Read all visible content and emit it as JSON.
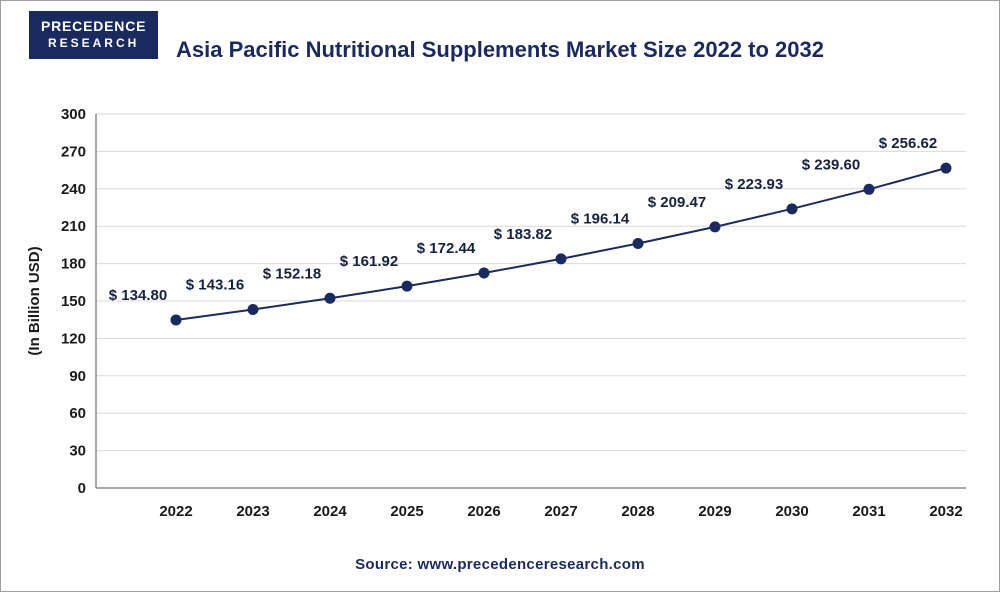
{
  "logo": {
    "line1": "PRECEDENCE",
    "line2": "RESEARCH"
  },
  "title": "Asia Pacific Nutritional Supplements Market Size 2022 to 2032",
  "source": "Source: www.precedenceresearch.com",
  "chart_data": {
    "type": "line",
    "title": "Asia Pacific Nutritional Supplements Market Size 2022 to 2032",
    "categories": [
      "2022",
      "2023",
      "2024",
      "2025",
      "2026",
      "2027",
      "2028",
      "2029",
      "2030",
      "2031",
      "2032"
    ],
    "values": [
      134.8,
      143.16,
      152.18,
      161.92,
      172.44,
      183.82,
      196.14,
      209.47,
      223.93,
      239.6,
      256.62
    ],
    "value_labels": [
      "$ 134.80",
      "$ 143.16",
      "$ 152.18",
      "$ 161.92",
      "$ 172.44",
      "$ 183.82",
      "$ 196.14",
      "$ 209.47",
      "$ 223.93",
      "$ 239.60",
      "$ 256.62"
    ],
    "xlabel": "",
    "ylabel": "(In Billion USD)",
    "ylim": [
      0,
      300
    ],
    "ytick_step": 30,
    "grid": true,
    "legend_position": "none",
    "colors": {
      "line": "#1b2a5e",
      "marker": "#1b2a5e",
      "grid": "#d9d9d9",
      "axis": "#8a8a8a",
      "tick_text": "#1a1a1a",
      "point_label": "#16213e"
    }
  }
}
